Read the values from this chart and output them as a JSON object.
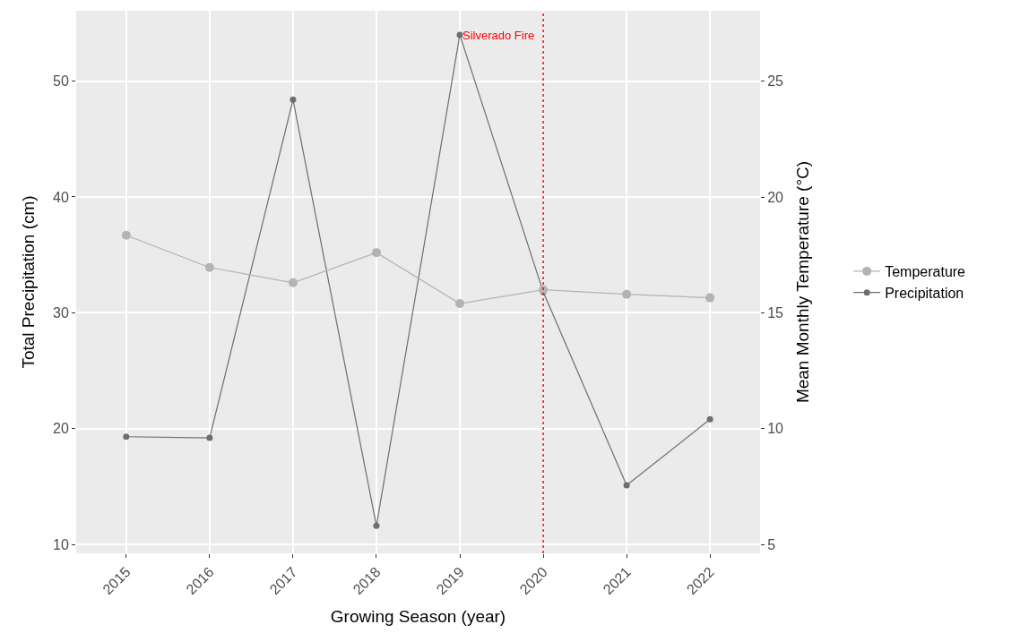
{
  "chart_data": {
    "type": "line",
    "xlabel": "Growing Season (year)",
    "ylabel": "Total Precipitation (cm)",
    "y2label": "Mean Monthly Temperature (°C)",
    "categories": [
      "2015",
      "2016",
      "2017",
      "2018",
      "2019",
      "2020",
      "2021",
      "2022"
    ],
    "series": [
      {
        "name": "Temperature",
        "color": "#b3b3b3",
        "axis": "y2",
        "values": [
          18.35,
          16.96,
          16.3,
          17.6,
          15.4,
          16.0,
          15.8,
          15.65
        ]
      },
      {
        "name": "Precipitation",
        "color": "#6e6e6e",
        "values": [
          19.3,
          19.2,
          48.4,
          11.6,
          54.0,
          31.8,
          15.1,
          20.8
        ]
      }
    ],
    "ylim": [
      9.23,
      56.08
    ],
    "yticks": [
      10,
      20,
      30,
      40,
      50
    ],
    "y2lim": [
      4.62,
      28.04
    ],
    "y2ticks": [
      5,
      10,
      15,
      20,
      25
    ],
    "ref_lines": [
      {
        "axis": "x",
        "value": "2020",
        "label": "Silverado Fire",
        "color": "#ff0000",
        "line_style": "dotted"
      }
    ],
    "grid": true,
    "legend": "right",
    "marker": "circle",
    "line_style": "solid"
  }
}
